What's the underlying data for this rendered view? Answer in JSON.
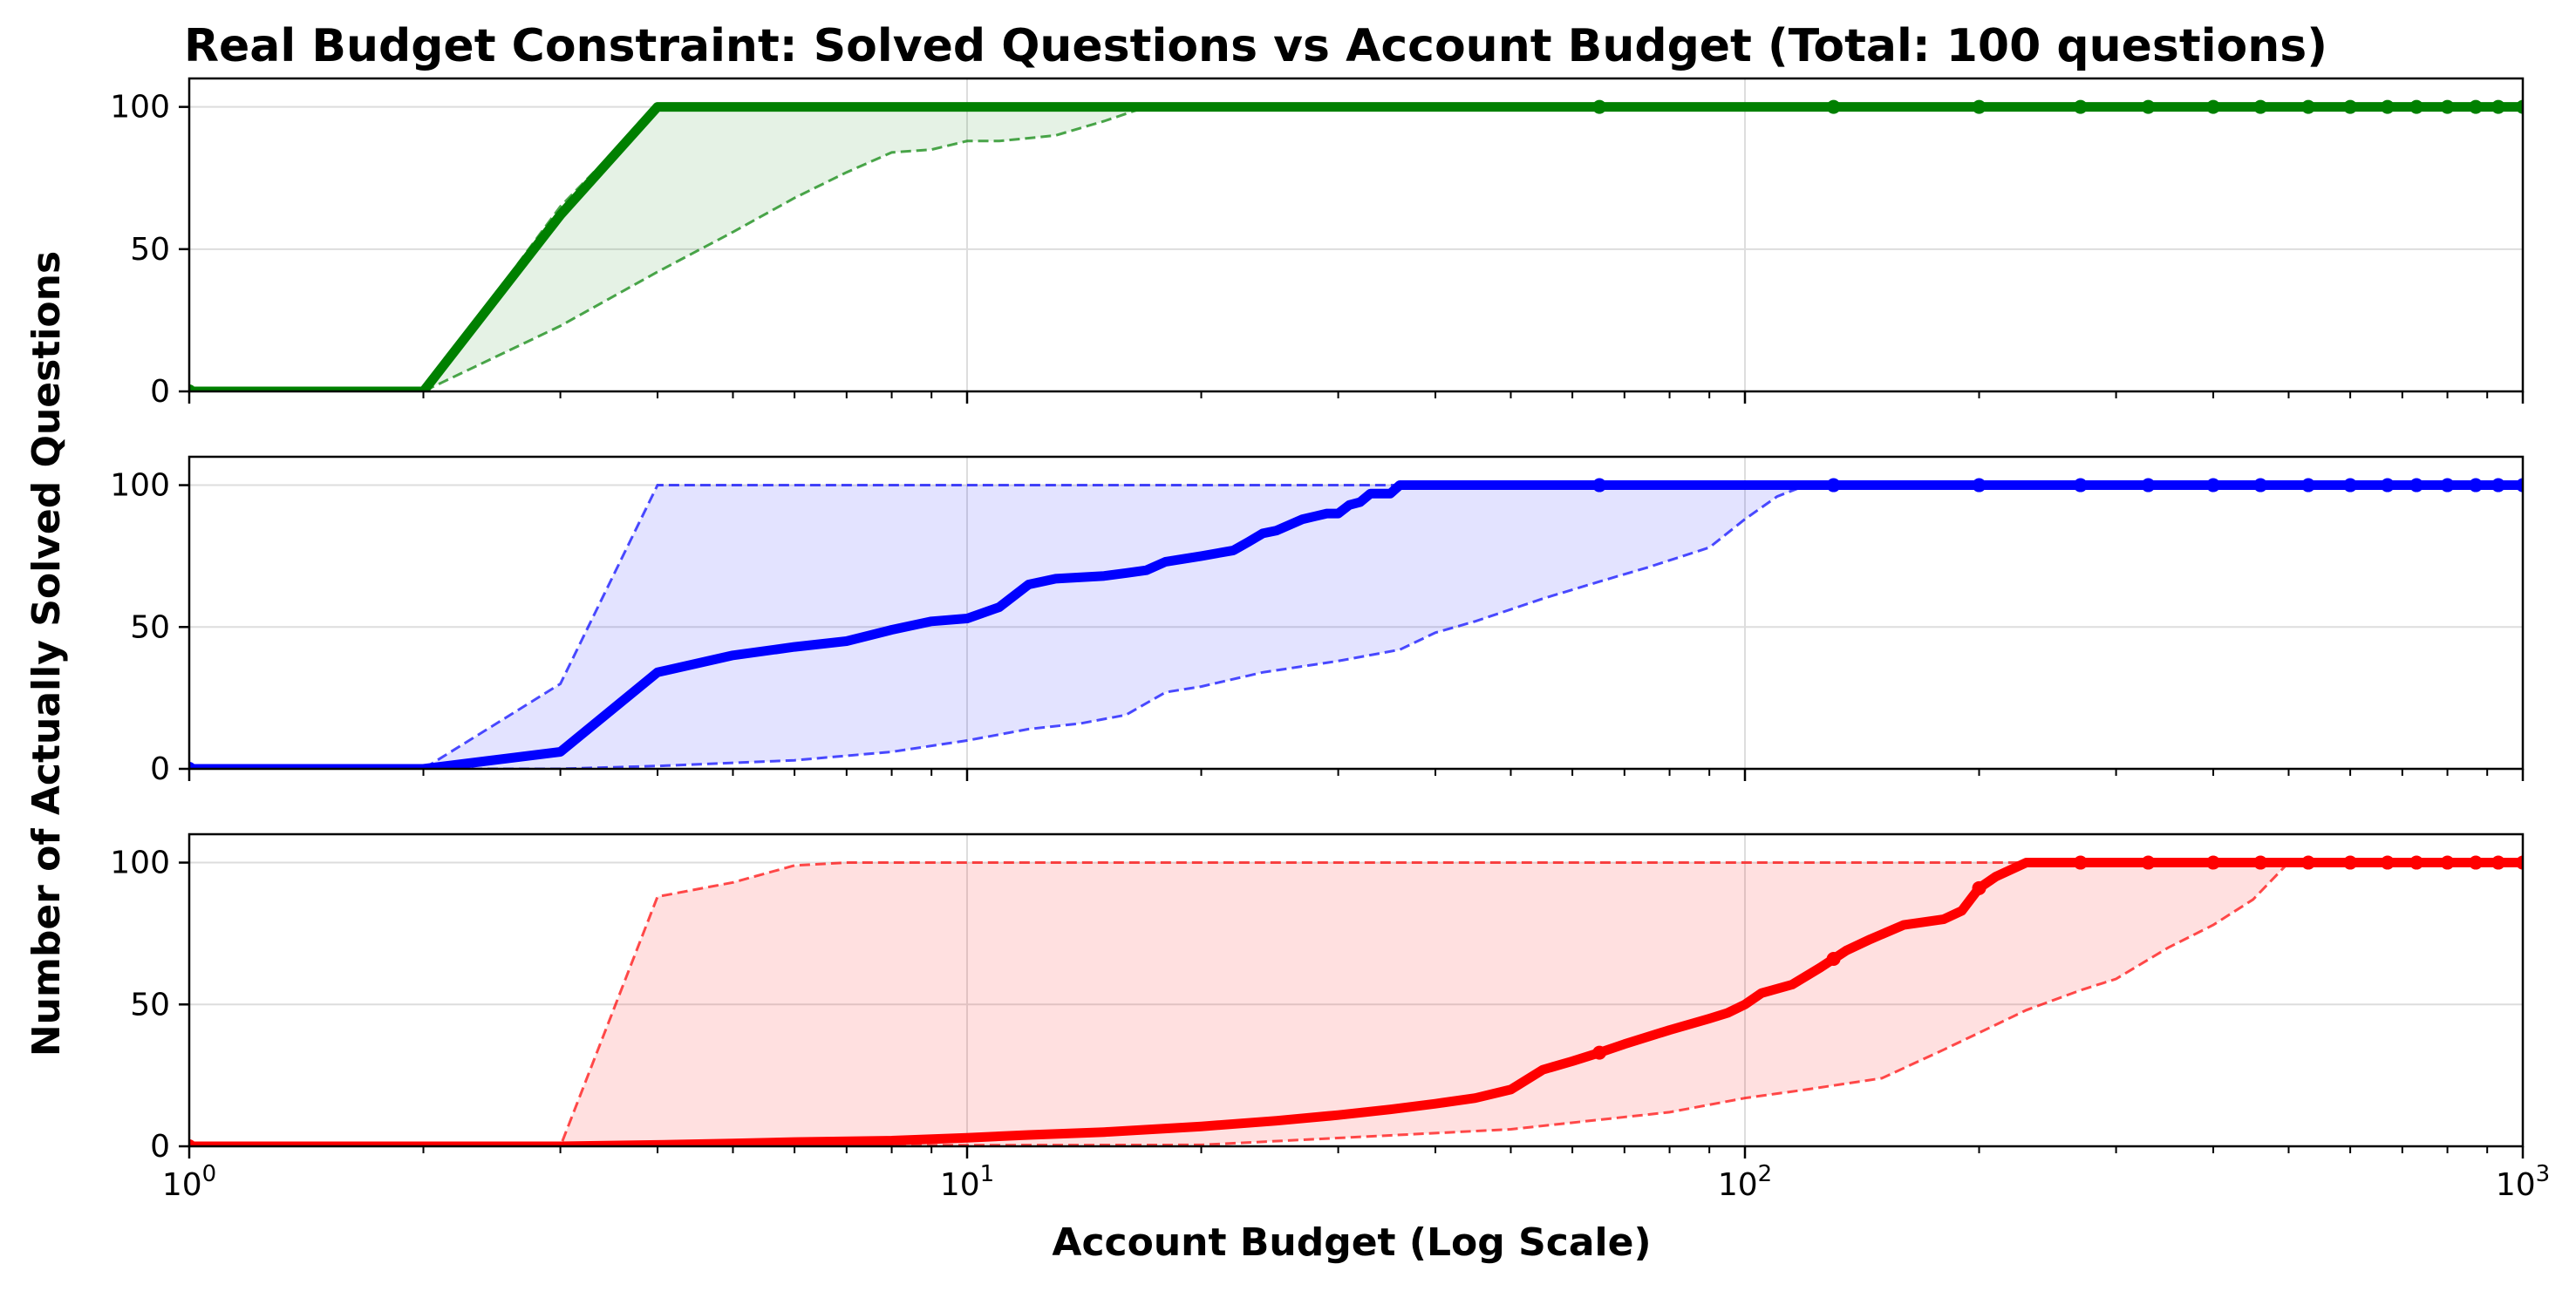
{
  "chart_data": [
    {
      "type": "line",
      "title": "Real Budget Constraint: Solved Questions vs Account Budget (Total: 100 questions)",
      "xlabel": "Account Budget (Log Scale)",
      "ylabel": "Number of Actually Solved Questions",
      "xscale": "log",
      "xlim": [
        1,
        1000
      ],
      "ylim": [
        0,
        110
      ],
      "yticks": [
        0,
        50,
        100
      ],
      "xticks": [
        "10^0",
        "10^1",
        "10^2",
        "10^3"
      ],
      "grid": true,
      "color": "#008000",
      "series": [
        {
          "role": "median",
          "x": [
            1,
            2,
            3,
            4,
            65,
            130,
            200,
            270,
            330,
            400,
            460,
            530,
            600,
            670,
            730,
            800,
            870,
            930,
            1000
          ],
          "y": [
            0,
            0,
            62,
            100,
            100,
            100,
            100,
            100,
            100,
            100,
            100,
            100,
            100,
            100,
            100,
            100,
            100,
            100,
            100
          ]
        },
        {
          "role": "upper",
          "x": [
            1,
            2,
            3,
            4,
            1000
          ],
          "y": [
            0,
            0,
            65,
            100,
            100
          ]
        },
        {
          "role": "lower",
          "x": [
            1,
            2,
            3,
            4,
            5,
            6,
            7,
            8,
            9,
            10,
            11,
            12,
            13,
            15,
            17,
            1000
          ],
          "y": [
            0,
            0,
            23,
            42,
            56,
            68,
            77,
            84,
            85,
            88,
            88,
            89,
            90,
            95,
            100,
            100
          ]
        }
      ],
      "markers_x": [
        1,
        65,
        130,
        200,
        270,
        330,
        400,
        460,
        530,
        600,
        670,
        730,
        800,
        870,
        930,
        1000
      ]
    },
    {
      "type": "line",
      "xscale": "log",
      "xlim": [
        1,
        1000
      ],
      "ylim": [
        0,
        110
      ],
      "yticks": [
        0,
        50,
        100
      ],
      "grid": true,
      "color": "#0000ff",
      "series": [
        {
          "role": "median",
          "x": [
            1,
            2,
            3,
            4,
            5,
            6,
            7,
            8,
            9,
            10,
            11,
            12,
            13,
            15,
            16,
            17,
            18,
            20,
            22,
            23,
            24,
            25,
            27,
            28,
            29,
            30,
            31,
            32,
            33,
            35,
            36,
            65,
            130,
            200,
            270,
            330,
            400,
            460,
            530,
            600,
            670,
            730,
            800,
            870,
            930,
            1000
          ],
          "y": [
            0,
            0,
            6,
            34,
            40,
            43,
            45,
            49,
            52,
            53,
            57,
            65,
            67,
            68,
            69,
            70,
            73,
            75,
            77,
            80,
            83,
            84,
            88,
            89,
            90,
            90,
            93,
            94,
            97,
            97,
            100,
            100,
            100,
            100,
            100,
            100,
            100,
            100,
            100,
            100,
            100,
            100,
            100,
            100,
            100,
            100
          ]
        },
        {
          "role": "upper",
          "x": [
            1,
            2,
            3,
            4,
            1000
          ],
          "y": [
            0,
            0,
            30,
            100,
            100
          ]
        },
        {
          "role": "lower",
          "x": [
            1,
            2,
            3,
            4,
            6,
            8,
            10,
            12,
            14,
            16,
            18,
            20,
            24,
            30,
            36,
            40,
            45,
            55,
            65,
            75,
            90,
            100,
            110,
            120,
            1000
          ],
          "y": [
            0,
            0,
            0,
            1,
            3,
            6,
            10,
            14,
            16,
            19,
            27,
            29,
            34,
            38,
            42,
            48,
            52,
            60,
            66,
            71,
            78,
            88,
            96,
            100,
            100
          ]
        }
      ],
      "markers_x": [
        1,
        65,
        130,
        200,
        270,
        330,
        400,
        460,
        530,
        600,
        670,
        730,
        800,
        870,
        930,
        1000
      ]
    },
    {
      "type": "line",
      "xscale": "log",
      "xlim": [
        1,
        1000
      ],
      "ylim": [
        0,
        110
      ],
      "yticks": [
        0,
        50,
        100
      ],
      "grid": true,
      "color": "#ff0000",
      "series": [
        {
          "role": "median",
          "x": [
            1,
            2,
            3,
            4,
            5,
            6,
            8,
            10,
            12,
            15,
            20,
            25,
            30,
            35,
            40,
            45,
            50,
            55,
            60,
            65,
            70,
            80,
            90,
            95,
            100,
            105,
            115,
            125,
            135,
            145,
            160,
            180,
            190,
            200,
            210,
            230,
            270,
            330,
            400,
            460,
            530,
            600,
            670,
            730,
            800,
            870,
            930,
            1000
          ],
          "y": [
            0,
            0,
            0,
            0.5,
            1,
            1.5,
            2,
            3,
            4,
            5,
            7,
            9,
            11,
            13,
            15,
            17,
            20,
            27,
            30,
            33,
            36,
            41,
            45,
            47,
            50,
            54,
            57,
            63,
            69,
            73,
            78,
            80,
            83,
            91,
            95,
            100,
            100,
            100,
            100,
            100,
            100,
            100,
            100,
            100,
            100,
            100,
            100,
            100
          ]
        },
        {
          "role": "upper",
          "x": [
            1,
            2,
            3,
            4,
            5,
            6,
            7,
            8,
            1000
          ],
          "y": [
            0,
            0,
            0,
            88,
            93,
            99,
            100,
            100,
            100
          ]
        },
        {
          "role": "lower",
          "x": [
            1,
            20,
            50,
            80,
            100,
            120,
            150,
            180,
            200,
            230,
            270,
            300,
            350,
            400,
            450,
            500,
            1000
          ],
          "y": [
            0,
            0.5,
            6,
            12,
            17,
            20,
            24,
            34,
            40,
            48,
            55,
            59,
            70,
            78,
            87,
            100,
            100
          ]
        }
      ],
      "markers_x": [
        1,
        65,
        130,
        200,
        270,
        330,
        400,
        460,
        530,
        600,
        670,
        730,
        800,
        870,
        930,
        1000
      ]
    }
  ]
}
